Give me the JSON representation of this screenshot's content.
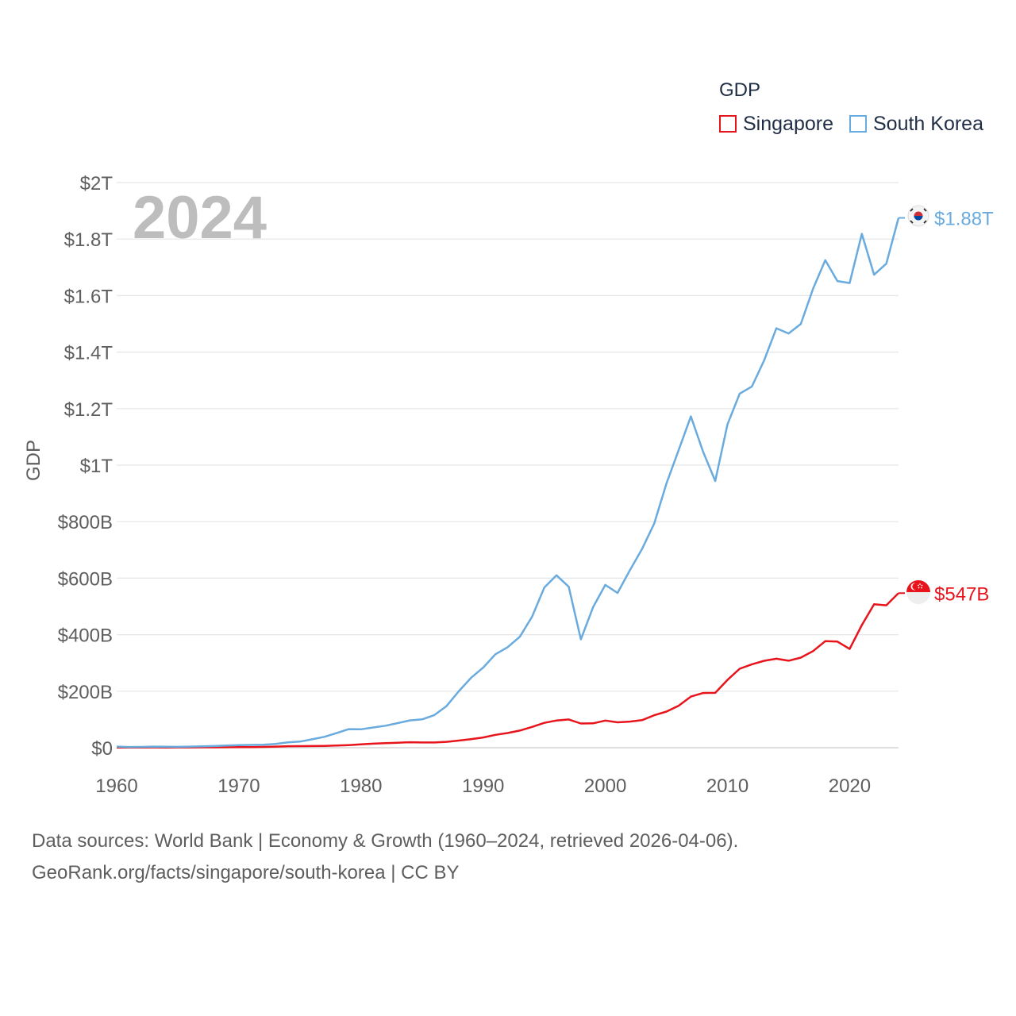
{
  "legend": {
    "title": "GDP",
    "items": [
      "Singapore",
      "South Korea"
    ]
  },
  "footer": {
    "line1": "Data sources: World Bank | Economy & Growth (1960–2024, retrieved 2026-04-06).",
    "line2": "GeoRank.org/facts/singapore/south-korea | CC BY"
  },
  "chart_data": {
    "type": "line",
    "title": "",
    "year_watermark": "2024",
    "xlabel": "",
    "ylabel": "GDP",
    "xlim": [
      1960,
      2024
    ],
    "ylim": [
      0,
      2000
    ],
    "y_unit": "billions USD",
    "x_ticks": [
      "1960",
      "1970",
      "1980",
      "1990",
      "2000",
      "2010",
      "2020"
    ],
    "y_ticks": [
      {
        "value": 0,
        "label": "$0"
      },
      {
        "value": 200,
        "label": "$200B"
      },
      {
        "value": 400,
        "label": "$400B"
      },
      {
        "value": 600,
        "label": "$600B"
      },
      {
        "value": 800,
        "label": "$800B"
      },
      {
        "value": 1000,
        "label": "$1T"
      },
      {
        "value": 1200,
        "label": "$1.2T"
      },
      {
        "value": 1400,
        "label": "$1.4T"
      },
      {
        "value": 1600,
        "label": "$1.6T"
      },
      {
        "value": 1800,
        "label": "$1.8T"
      },
      {
        "value": 2000,
        "label": "$2T"
      }
    ],
    "grid": true,
    "legend_position": "top-right",
    "x": [
      1960,
      1961,
      1962,
      1963,
      1964,
      1965,
      1966,
      1967,
      1968,
      1969,
      1970,
      1971,
      1972,
      1973,
      1974,
      1975,
      1976,
      1977,
      1978,
      1979,
      1980,
      1981,
      1982,
      1983,
      1984,
      1985,
      1986,
      1987,
      1988,
      1989,
      1990,
      1991,
      1992,
      1993,
      1994,
      1995,
      1996,
      1997,
      1998,
      1999,
      2000,
      2001,
      2002,
      2003,
      2004,
      2005,
      2006,
      2007,
      2008,
      2009,
      2010,
      2011,
      2012,
      2013,
      2014,
      2015,
      2016,
      2017,
      2018,
      2019,
      2020,
      2021,
      2022,
      2023,
      2024
    ],
    "series": [
      {
        "name": "Singapore",
        "color": "#e8141c",
        "end_label": "$547B",
        "values": [
          0.7,
          0.8,
          0.9,
          1.0,
          0.9,
          1.0,
          1.1,
          1.3,
          1.4,
          1.7,
          1.9,
          2.3,
          2.9,
          4.0,
          5.2,
          5.5,
          5.9,
          6.5,
          7.5,
          9.3,
          11.9,
          14.2,
          16.1,
          17.8,
          19.4,
          18.6,
          18.4,
          20.8,
          25.4,
          30.4,
          36.1,
          45.5,
          52.1,
          60.6,
          73.7,
          87.8,
          96.3,
          100.1,
          85.7,
          86.3,
          96.1,
          89.8,
          92.5,
          97.6,
          115.0,
          127.8,
          148.6,
          180.9,
          193.6,
          194.2,
          239.8,
          279.4,
          295.1,
          307.6,
          314.9,
          308.0,
          318.8,
          341.9,
          376.9,
          375.5,
          349.5,
          434.1,
          507.6,
          504.0,
          547.0
        ]
      },
      {
        "name": "South Korea",
        "color": "#6aabdf",
        "end_label": "$1.88T",
        "values": [
          3.9,
          2.4,
          2.8,
          3.9,
          3.5,
          3.1,
          3.8,
          4.7,
          5.9,
          7.5,
          8.9,
          9.9,
          10.8,
          13.5,
          19.2,
          21.7,
          29.8,
          38.4,
          51.8,
          65.6,
          65.3,
          71.6,
          77.8,
          87.0,
          96.6,
          100.3,
          115.5,
          147.1,
          199.3,
          246.9,
          283.4,
          330.6,
          355.5,
          392.7,
          463.6,
          566.6,
          610.2,
          569.8,
          383.3,
          497.5,
          576.2,
          547.7,
          627.2,
          702.7,
          793.2,
          934.7,
          1053.2,
          1172.6,
          1047.3,
          943.9,
          1144.1,
          1253.2,
          1278.4,
          1370.8,
          1484.3,
          1466.0,
          1499.7,
          1623.9,
          1725.4,
          1651.4,
          1644.3,
          1818.4,
          1673.9,
          1712.8,
          1875.0
        ]
      }
    ]
  }
}
